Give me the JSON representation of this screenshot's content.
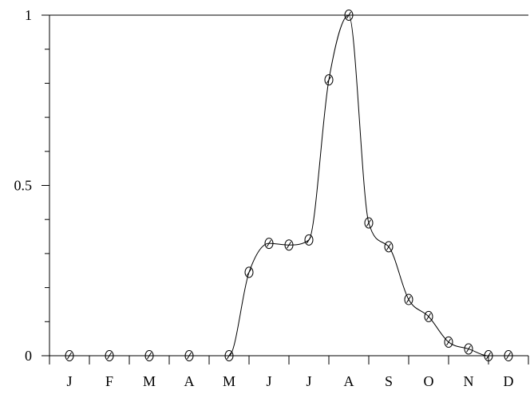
{
  "chart_data": {
    "type": "line",
    "title": "",
    "xlabel": "",
    "ylabel": "",
    "x_tick_labels": [
      "J",
      "F",
      "M",
      "A",
      "M",
      "J",
      "J",
      "A",
      "S",
      "O",
      "N",
      "D"
    ],
    "y_tick_labels": [
      "0",
      "0.5",
      "1"
    ],
    "y_ticks": [
      0,
      0.5,
      1
    ],
    "ylim": [
      0,
      1
    ],
    "xlim": [
      0,
      12
    ],
    "grid": false,
    "series": [
      {
        "markers": "open-circle",
        "line": "smooth",
        "x": [
          0.5,
          1.5,
          2.5,
          3.5,
          4.5,
          5.0,
          5.5,
          6.0,
          6.5,
          7.0,
          7.5,
          8.0,
          8.5,
          9.0,
          9.5,
          10.0,
          10.5,
          11.0,
          11.5
        ],
        "y": [
          0.0,
          0.0,
          0.0,
          0.0,
          0.0,
          0.245,
          0.33,
          0.325,
          0.34,
          0.81,
          1.0,
          0.39,
          0.32,
          0.165,
          0.115,
          0.04,
          0.02,
          0.0,
          0.0
        ]
      }
    ],
    "colors": {
      "line": "#000000",
      "background": "#ffffff"
    }
  }
}
